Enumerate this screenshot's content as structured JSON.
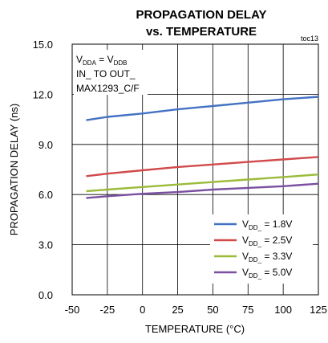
{
  "chart_data": {
    "type": "line",
    "title_line1": "PROPAGATION DELAY",
    "title_line2": "vs. TEMPERATURE",
    "tag": "toc13",
    "xlabel": "TEMPERATURE (°C)",
    "ylabel": "PROPAGATION DELAY (ns)",
    "xlim": [
      -50,
      125
    ],
    "ylim": [
      0,
      15
    ],
    "x_ticks": [
      "-50",
      "-25",
      "0",
      "25",
      "50",
      "75",
      "100",
      "125"
    ],
    "y_ticks": [
      "0.0",
      "3.0",
      "6.0",
      "9.0",
      "12.0",
      "15.0"
    ],
    "grid": true,
    "annotation": {
      "line1": {
        "v1": "V",
        "sub1": "DDA",
        "eq": " = V",
        "sub2": "DDB"
      },
      "line2": "IN_ TO OUT_",
      "line3": "MAX1293_C/F"
    },
    "legend_position": "bottom-right",
    "x": [
      -40,
      -25,
      0,
      25,
      50,
      75,
      100,
      125
    ],
    "series": [
      {
        "name": "V_DD_ = 1.8V",
        "v": "V",
        "sub": "DD_",
        "tail": " = 1.8V",
        "color": "#4472c4",
        "values": [
          10.45,
          10.65,
          10.85,
          11.1,
          11.3,
          11.5,
          11.7,
          11.85
        ]
      },
      {
        "name": "V_DD_ = 2.5V",
        "v": "V",
        "sub": "DD_",
        "tail": " = 2.5V",
        "color": "#d24a4a",
        "values": [
          7.1,
          7.25,
          7.45,
          7.65,
          7.8,
          7.95,
          8.1,
          8.25
        ]
      },
      {
        "name": "V_DD_ = 3.3V",
        "v": "V",
        "sub": "DD_",
        "tail": " = 3.3V",
        "color": "#9bbb3b",
        "values": [
          6.2,
          6.3,
          6.45,
          6.6,
          6.75,
          6.9,
          7.05,
          7.2
        ]
      },
      {
        "name": "V_DD_ = 5.0V",
        "v": "V",
        "sub": "DD_",
        "tail": " = 5.0V",
        "color": "#7a4fa0",
        "values": [
          5.8,
          5.9,
          6.05,
          6.15,
          6.3,
          6.4,
          6.5,
          6.65
        ]
      }
    ]
  }
}
